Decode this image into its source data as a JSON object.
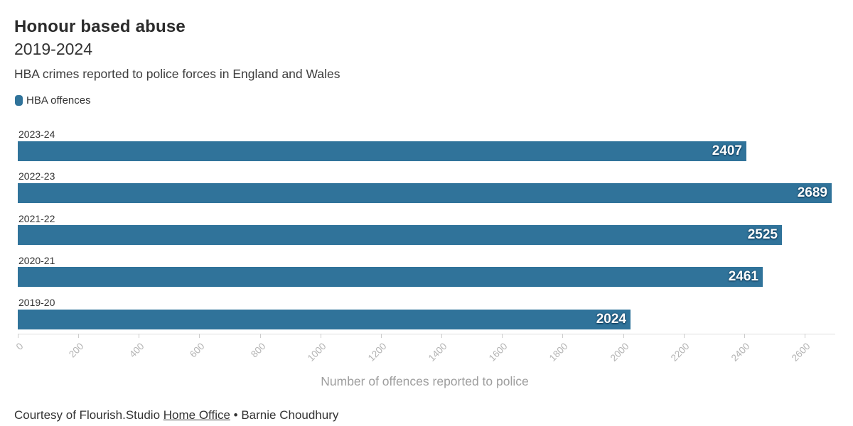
{
  "header": {
    "title": "Honour based abuse",
    "subtitle": "2019-2024",
    "description": "HBA crimes reported to police forces in England and Wales"
  },
  "legend": {
    "items": [
      {
        "label": "HBA offences",
        "color": "#30739a"
      }
    ]
  },
  "chart_data": {
    "type": "bar",
    "orientation": "horizontal",
    "title": "Honour based abuse",
    "subtitle": "2019-2024",
    "categories": [
      "2023-24",
      "2022-23",
      "2021-22",
      "2020-21",
      "2019-20"
    ],
    "series": [
      {
        "name": "HBA offences",
        "values": [
          2407,
          2689,
          2525,
          2461,
          2024
        ]
      }
    ],
    "value_labels": [
      2407,
      2689,
      2525,
      2461,
      2024
    ],
    "xlabel": "Number of offences reported to police",
    "ylabel": "",
    "xlim": [
      0,
      2689
    ],
    "xticks": [
      0,
      200,
      400,
      600,
      800,
      1000,
      1200,
      1400,
      1600,
      1800,
      2000,
      2200,
      2400,
      2600
    ],
    "grid": false,
    "legend_position": "top-left",
    "bar_color": "#30739a"
  },
  "footer": {
    "credit_prefix": "Courtesy of Flourish.Studio ",
    "source_link_label": "Home Office",
    "separator": " • ",
    "author": "Barnie Choudhury"
  },
  "colors": {
    "bar": "#30739a",
    "title_text": "#2b2b2b",
    "body_text": "#333333",
    "axis_tick_text": "#b3b3b3",
    "axis_title_text": "#9e9e9e",
    "axis_line": "#dddddd"
  }
}
